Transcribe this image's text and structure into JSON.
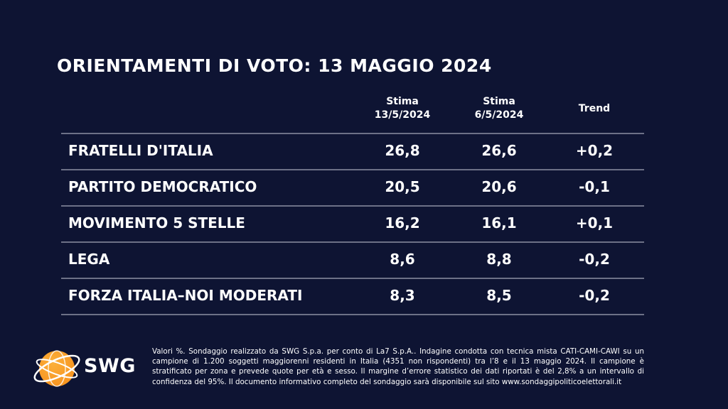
{
  "title": "ORIENTAMENTI DI VOTO: 13 MAGGIO 2024",
  "columns": {
    "current": {
      "line1": "Stima",
      "line2": "13/5/2024"
    },
    "previous": {
      "line1": "Stima",
      "line2": "6/5/2024"
    },
    "trend": "Trend"
  },
  "chart_data": {
    "type": "table",
    "title": "ORIENTAMENTI DI VOTO: 13 MAGGIO 2024",
    "columns": [
      "Stima 13/5/2024",
      "Stima 6/5/2024",
      "Trend"
    ],
    "rows": [
      {
        "party": "FRATELLI D'ITALIA",
        "current": "26,8",
        "previous": "26,6",
        "trend": "+0,2"
      },
      {
        "party": "PARTITO DEMOCRATICO",
        "current": "20,5",
        "previous": "20,6",
        "trend": "-0,1"
      },
      {
        "party": "MOVIMENTO 5 STELLE",
        "current": "16,2",
        "previous": "16,1",
        "trend": "+0,1"
      },
      {
        "party": "LEGA",
        "current": "8,6",
        "previous": "8,8",
        "trend": "-0,2"
      },
      {
        "party": "FORZA ITALIA–NOI MODERATI",
        "current": "8,3",
        "previous": "8,5",
        "trend": "-0,2"
      }
    ]
  },
  "footnote": "Valori %. Sondaggio realizzato da SWG S.p.a. per conto di La7 S.p.A.. Indagine condotta con tecnica mista CATI-CAMI-CAWI su un campione di 1.200 soggetti maggiorenni residenti in Italia (4351 non rispondenti) tra l’8 e il 13 maggio 2024. Il campione è stratificato per zona e prevede quote per età e sesso. Il margine d’errore statistico dei dati riportati è del 2,8% a un intervallo di confidenza del 95%. Il documento informativo completo del sondaggio sarà disponibile sul sito www.sondaggipoliticoelettorali.it",
  "logo": {
    "text": "SWG",
    "icon": "swg-globe-logo-icon",
    "colors": {
      "orange": "#f7931e",
      "yellow": "#fbb03b",
      "white": "#ffffff"
    }
  },
  "colors": {
    "background": "#0e1433",
    "text": "#ffffff",
    "rule": "#6d7187"
  }
}
